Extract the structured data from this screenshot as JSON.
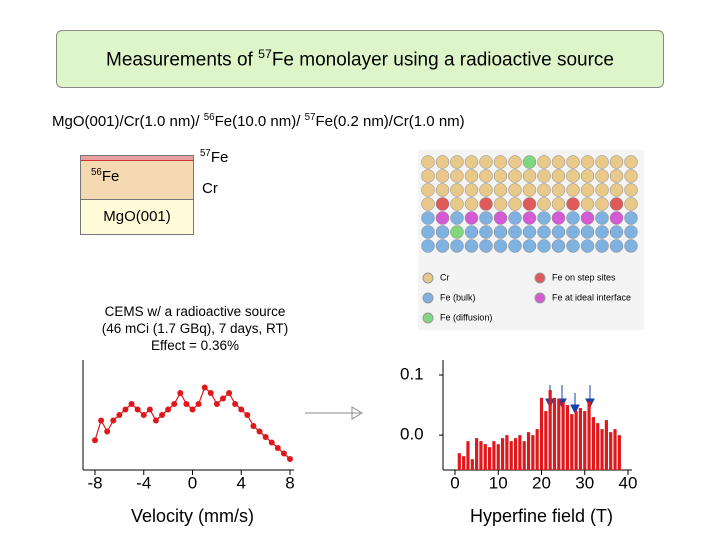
{
  "title": [
    "Measurements of ",
    "57",
    "Fe monolayer using a radioactive source"
  ],
  "subtitle": [
    "MgO(001)/Cr(1.0 nm)/ ",
    "56",
    "Fe(10.0 nm)/ ",
    "57",
    "Fe(0.2 nm)/Cr(1.0 nm)"
  ],
  "layers": {
    "fe56": [
      "56",
      "Fe"
    ],
    "fe57": [
      "57",
      "Fe"
    ],
    "cr": "Cr",
    "substrate": "MgO(001)"
  },
  "atom_legend": [
    "Cr",
    "Fe on step sites",
    "Fe (bulk)",
    "Fe at ideal interface",
    "Fe (diffusion)"
  ],
  "cems_note": [
    "CEMS w/ a radioactive source",
    "(46 mCi (1.7 GBq), 7 days, RT)",
    "Effect = 0.36%"
  ],
  "chart_data": [
    {
      "type": "scatter",
      "xlabel": "Velocity  (mm/s)",
      "color": "#e0181b",
      "x": [
        -8,
        -7.5,
        -7,
        -6.5,
        -6,
        -5.5,
        -5,
        -4.5,
        -4,
        -3.5,
        -3,
        -2.5,
        -2,
        -1.5,
        -1,
        -0.5,
        0,
        0.5,
        1,
        1.5,
        2,
        2.5,
        3,
        3.5,
        4,
        4.5,
        5,
        5.5,
        6,
        6.5,
        7,
        7.5,
        8
      ],
      "values": [
        0.27,
        0.45,
        0.35,
        0.45,
        0.5,
        0.55,
        0.6,
        0.55,
        0.5,
        0.55,
        0.45,
        0.5,
        0.55,
        0.6,
        0.7,
        0.6,
        0.55,
        0.6,
        0.75,
        0.7,
        0.6,
        0.65,
        0.7,
        0.6,
        0.55,
        0.5,
        0.4,
        0.35,
        0.3,
        0.25,
        0.2,
        0.15,
        0.1
      ],
      "xlim": [
        -8,
        8
      ],
      "xticks": [
        -8,
        -4,
        0,
        4,
        8
      ],
      "ylim": [
        0,
        1
      ]
    },
    {
      "type": "bar",
      "xlabel": "Hyperfine field  (T)",
      "color": "#e0181b",
      "x": [
        1,
        2,
        3,
        4,
        5,
        6,
        7,
        8,
        9,
        10,
        11,
        12,
        13,
        14,
        15,
        16,
        17,
        18,
        19,
        20,
        21,
        22,
        23,
        24,
        25,
        26,
        27,
        28,
        29,
        30,
        31,
        32,
        33,
        34,
        35,
        36,
        37,
        38
      ],
      "values": [
        -0.03,
        -0.035,
        -0.01,
        -0.04,
        -0.005,
        -0.01,
        -0.015,
        -0.02,
        -0.01,
        -0.015,
        -0.005,
        0.0,
        -0.01,
        -0.005,
        0.0,
        -0.01,
        0.005,
        0.0,
        0.01,
        0.062,
        0.04,
        0.075,
        0.062,
        0.06,
        0.055,
        0.05,
        0.035,
        0.04,
        0.045,
        0.04,
        0.056,
        0.03,
        0.02,
        0.01,
        0.025,
        0.005,
        0.01,
        0.0
      ],
      "xlim": [
        0,
        40
      ],
      "xticks": [
        0,
        10,
        20,
        30,
        40
      ],
      "ylim": [
        -0.058,
        0.125
      ],
      "yticks": [
        {
          "value": 0,
          "label": "0.0"
        },
        {
          "value": 0.1,
          "label": "0.1"
        }
      ]
    }
  ]
}
